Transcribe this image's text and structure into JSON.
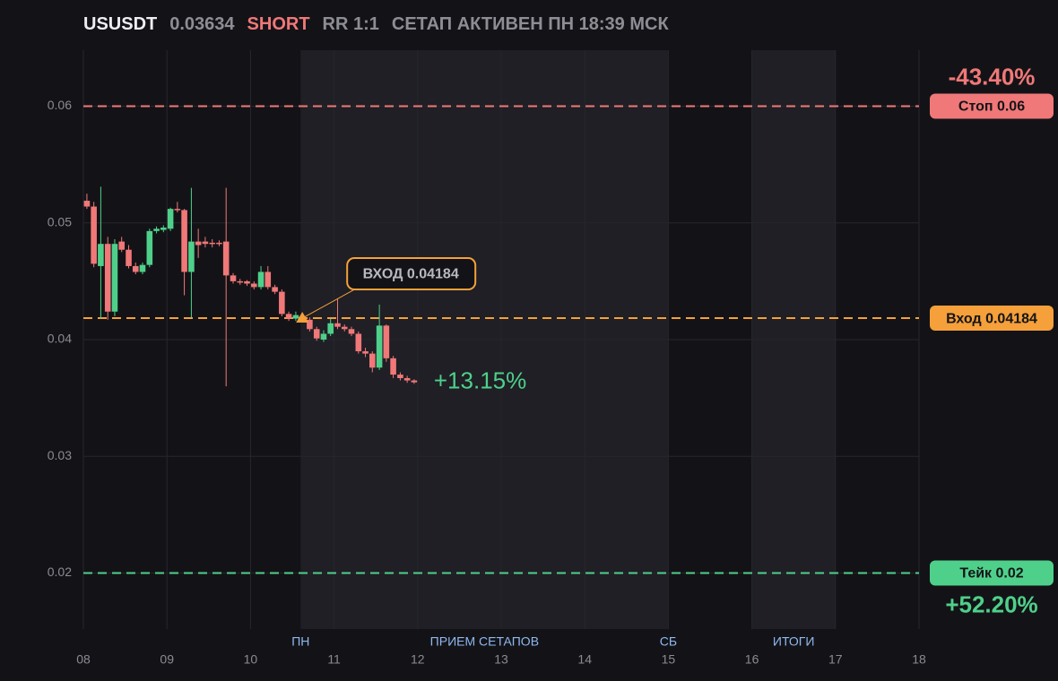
{
  "header": {
    "symbol": "USUSDT",
    "price": "0.03634",
    "side": "SHORT",
    "rr": "RR 1:1",
    "status": "СЕТАП АКТИВЕН ПН 18:39 МСК"
  },
  "chart_data": {
    "type": "candlestick",
    "x": [
      8.042,
      8.125,
      8.208,
      8.292,
      8.375,
      8.458,
      8.542,
      8.625,
      8.708,
      8.792,
      8.875,
      8.958,
      9.042,
      9.125,
      9.208,
      9.292,
      9.375,
      9.458,
      9.542,
      9.625,
      9.708,
      9.792,
      9.875,
      9.958,
      10.042,
      10.125,
      10.208,
      10.292,
      10.375,
      10.458,
      10.542,
      10.625,
      10.708,
      10.792,
      10.875,
      10.958,
      11.042,
      11.125,
      11.208,
      11.292,
      11.375,
      11.458,
      11.542,
      11.625,
      11.708,
      11.792,
      11.875,
      11.958
    ],
    "open": [
      0.0519,
      0.0514,
      0.0463,
      0.0482,
      0.0424,
      0.0484,
      0.0477,
      0.0463,
      0.0458,
      0.0464,
      0.0493,
      0.0494,
      0.0495,
      0.0512,
      0.0511,
      0.0458,
      0.0484,
      0.0484,
      0.0483,
      0.0483,
      0.0484,
      0.0455,
      0.045,
      0.045,
      0.0448,
      0.0445,
      0.0458,
      0.0445,
      0.0441,
      0.0422,
      0.0418,
      0.042,
      0.0417,
      0.0409,
      0.04,
      0.0405,
      0.0414,
      0.0411,
      0.0409,
      0.0405,
      0.039,
      0.0388,
      0.0376,
      0.0412,
      0.0384,
      0.037,
      0.0367,
      0.0365
    ],
    "high": [
      0.0525,
      0.0518,
      0.0531,
      0.0488,
      0.0486,
      0.0488,
      0.0481,
      0.0466,
      0.0466,
      0.0495,
      0.0497,
      0.0498,
      0.0513,
      0.0518,
      0.0512,
      0.053,
      0.0495,
      0.0488,
      0.0486,
      0.0485,
      0.053,
      0.0457,
      0.0452,
      0.0451,
      0.045,
      0.0463,
      0.0463,
      0.0447,
      0.0443,
      0.0424,
      0.0424,
      0.0422,
      0.0419,
      0.0411,
      0.0408,
      0.0418,
      0.0435,
      0.0413,
      0.0411,
      0.0407,
      0.0393,
      0.039,
      0.043,
      0.0413,
      0.0386,
      0.0372,
      0.0369,
      0.0366
    ],
    "low": [
      0.0512,
      0.0462,
      0.0418,
      0.0417,
      0.042,
      0.0475,
      0.0461,
      0.0456,
      0.0456,
      0.0462,
      0.0491,
      0.0492,
      0.0493,
      0.0509,
      0.0438,
      0.0419,
      0.047,
      0.0479,
      0.0479,
      0.048,
      0.036,
      0.0448,
      0.0447,
      0.0446,
      0.0443,
      0.0443,
      0.0443,
      0.0439,
      0.042,
      0.0416,
      0.0416,
      0.0415,
      0.0407,
      0.0399,
      0.0398,
      0.0403,
      0.0409,
      0.0407,
      0.0403,
      0.0388,
      0.0385,
      0.0372,
      0.0374,
      0.0381,
      0.0367,
      0.0365,
      0.0363,
      0.0362
    ],
    "close": [
      0.0514,
      0.0465,
      0.0482,
      0.0424,
      0.0482,
      0.0477,
      0.0463,
      0.0458,
      0.0464,
      0.0493,
      0.0495,
      0.0496,
      0.0512,
      0.0511,
      0.0458,
      0.0484,
      0.0481,
      0.0482,
      0.0482,
      0.0482,
      0.0455,
      0.045,
      0.0449,
      0.0448,
      0.0445,
      0.0458,
      0.0445,
      0.0441,
      0.0422,
      0.0418,
      0.0421,
      0.0417,
      0.0409,
      0.0401,
      0.0405,
      0.0414,
      0.0411,
      0.0409,
      0.0405,
      0.039,
      0.0388,
      0.0376,
      0.0412,
      0.0384,
      0.037,
      0.0367,
      0.0365,
      0.03634
    ],
    "up_color": "#4fd08a",
    "down_color": "#f07878",
    "xlim": [
      8,
      18
    ],
    "xticks": [
      {
        "value": 8,
        "label": "08"
      },
      {
        "value": 9,
        "label": "09"
      },
      10,
      11,
      12,
      13,
      14,
      15,
      16,
      17,
      18
    ],
    "ylim": [
      0.0152,
      0.0648
    ],
    "yticks": [
      0.02,
      0.03,
      0.04,
      0.05,
      0.06
    ],
    "grid": true,
    "zones": [
      {
        "start": 10.6,
        "end": 15
      },
      {
        "start": 16,
        "end": 17
      }
    ],
    "session_labels": [
      {
        "x": 10.6,
        "label": "ПН"
      },
      {
        "x": 12.8,
        "label": "ПРИЕМ СЕТАПОВ"
      },
      {
        "x": 15,
        "label": "СБ"
      },
      {
        "x": 16.5,
        "label": "ИТОГИ"
      }
    ],
    "levels": [
      {
        "value": 0.06,
        "label": "Стоп 0.06",
        "change": "-43.40%",
        "color": "#f07878"
      },
      {
        "value": 0.04184,
        "label": "Вход 0.04184",
        "color": "#f5a03a"
      },
      {
        "value": 0.02,
        "label": "Тейк 0.02",
        "change": "+52.20%",
        "color": "#4fd08a"
      }
    ],
    "entry": {
      "x": 10.62,
      "value": 0.04184,
      "label": "ВХОД 0.04184"
    },
    "last_change": "+13.15%"
  }
}
